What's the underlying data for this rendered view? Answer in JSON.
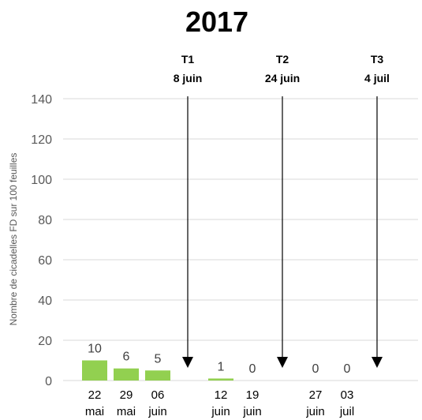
{
  "chart_data": {
    "type": "bar",
    "title": "2017",
    "ylabel": "Nombre de cicadelles FD sur 100 feuilles",
    "ylim": [
      0,
      140
    ],
    "yticks": [
      0,
      20,
      40,
      60,
      80,
      100,
      120,
      140
    ],
    "grid": true,
    "categories": [
      [
        "22",
        "mai"
      ],
      [
        "29",
        "mai"
      ],
      [
        "06",
        "juin"
      ],
      [
        "",
        ""
      ],
      [
        "12",
        "juin"
      ],
      [
        "19",
        "juin"
      ],
      [
        "",
        ""
      ],
      [
        "27",
        "juin"
      ],
      [
        "03",
        "juil"
      ],
      [
        "",
        ""
      ]
    ],
    "values": [
      10,
      6,
      5,
      null,
      1,
      0,
      null,
      0,
      0,
      null
    ],
    "color": "#92d050",
    "annotations": [
      {
        "label": "T1",
        "date": "8 juin",
        "category_index": 3
      },
      {
        "label": "T2",
        "date": "24 juin",
        "category_index": 6
      },
      {
        "label": "T3",
        "date": "4 juil",
        "category_index": 9
      }
    ]
  }
}
